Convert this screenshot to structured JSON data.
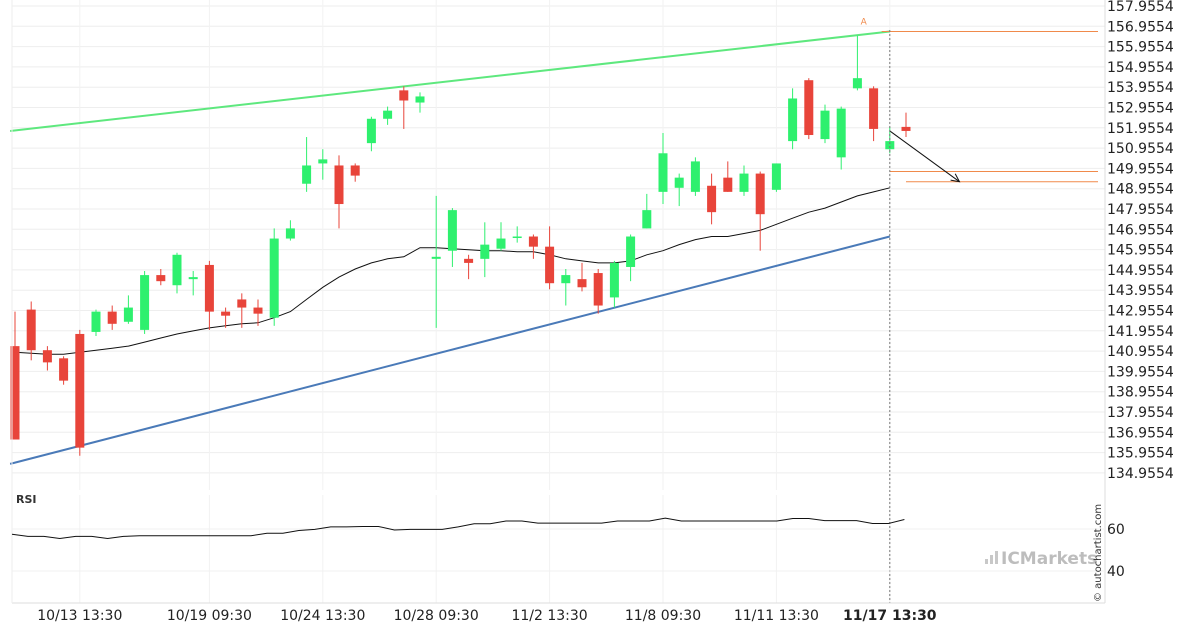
{
  "chart_data": {
    "type": "candlestick",
    "price_axis": {
      "ticks": [
        "157.9554",
        "156.9554",
        "155.9554",
        "154.9554",
        "153.9554",
        "152.9554",
        "151.9554",
        "150.9554",
        "149.9554",
        "148.9554",
        "147.9554",
        "146.9554",
        "145.9554",
        "144.9554",
        "143.9554",
        "142.9554",
        "141.9554",
        "140.9554",
        "139.9554",
        "138.9554",
        "137.9554",
        "136.9554",
        "135.9554",
        "134.9554"
      ],
      "range": [
        134.4554,
        158.2554
      ]
    },
    "time_axis": {
      "labels": [
        {
          "text": "10/13 13:30",
          "index": 4
        },
        {
          "text": "10/19 09:30",
          "index": 12
        },
        {
          "text": "10/24 13:30",
          "index": 19
        },
        {
          "text": "10/28 09:30",
          "index": 26
        },
        {
          "text": "11/2 13:30",
          "index": 33
        },
        {
          "text": "11/8 09:30",
          "index": 40
        },
        {
          "text": "11/11 13:30",
          "index": 47
        },
        {
          "text": "11/17 13:30",
          "index": 54,
          "bold": true
        }
      ]
    },
    "candles": [
      [
        141.2,
        136.6,
        142.9,
        136.6
      ],
      [
        143.0,
        141.0,
        143.4,
        140.5
      ],
      [
        141.0,
        140.4,
        141.2,
        140.0
      ],
      [
        140.6,
        139.5,
        140.7,
        139.3
      ],
      [
        141.8,
        136.2,
        142.0,
        135.8
      ],
      [
        141.9,
        142.9,
        143.0,
        141.7
      ],
      [
        142.9,
        142.3,
        143.2,
        142.0
      ],
      [
        142.4,
        143.1,
        143.7,
        142.3
      ],
      [
        142.0,
        144.7,
        144.9,
        141.8
      ],
      [
        144.7,
        144.4,
        145.0,
        144.2
      ],
      [
        144.2,
        145.7,
        145.8,
        143.8
      ],
      [
        144.5,
        144.6,
        144.9,
        143.7
      ],
      [
        145.2,
        142.9,
        145.4,
        142.0
      ],
      [
        142.9,
        142.7,
        143.1,
        142.1
      ],
      [
        143.5,
        143.1,
        143.8,
        142.1
      ],
      [
        143.1,
        142.8,
        143.5,
        142.2
      ],
      [
        142.6,
        146.5,
        147.0,
        142.2
      ],
      [
        146.5,
        147.0,
        147.4,
        146.4
      ],
      [
        149.2,
        150.1,
        151.5,
        148.8
      ],
      [
        150.2,
        150.4,
        150.9,
        149.4
      ],
      [
        150.1,
        148.2,
        150.6,
        147.0
      ],
      [
        150.1,
        149.6,
        150.2,
        149.3
      ],
      [
        151.2,
        152.4,
        152.5,
        150.8
      ],
      [
        152.4,
        152.8,
        153.0,
        152.1
      ],
      [
        153.8,
        153.3,
        154.0,
        151.9
      ],
      [
        153.2,
        153.5,
        153.7,
        152.7
      ],
      [
        145.5,
        145.6,
        148.6,
        142.1
      ],
      [
        145.9,
        147.9,
        148.0,
        145.1
      ],
      [
        145.5,
        145.3,
        145.7,
        144.5
      ],
      [
        145.5,
        146.2,
        147.3,
        144.6
      ],
      [
        146.0,
        146.5,
        147.3,
        145.9
      ],
      [
        146.6,
        146.6,
        147.1,
        146.3
      ],
      [
        146.6,
        146.1,
        146.7,
        145.5
      ],
      [
        146.1,
        144.3,
        147.1,
        144.0
      ],
      [
        144.3,
        144.7,
        145.0,
        143.2
      ],
      [
        144.5,
        144.1,
        145.3,
        143.9
      ],
      [
        144.8,
        143.2,
        145.0,
        142.8
      ],
      [
        143.6,
        145.3,
        145.4,
        143.1
      ],
      [
        145.1,
        146.6,
        146.7,
        144.4
      ],
      [
        147.0,
        147.9,
        148.7,
        147.0
      ],
      [
        148.8,
        150.7,
        151.7,
        148.2
      ],
      [
        149.0,
        149.5,
        149.7,
        148.1
      ],
      [
        148.8,
        150.3,
        150.5,
        148.6
      ],
      [
        149.1,
        147.8,
        149.7,
        147.2
      ],
      [
        149.5,
        148.8,
        150.3,
        148.8
      ],
      [
        148.8,
        149.7,
        150.1,
        148.6
      ],
      [
        149.7,
        147.7,
        149.8,
        145.9
      ],
      [
        148.9,
        150.2,
        150.2,
        148.8
      ],
      [
        151.3,
        153.4,
        153.9,
        150.9
      ],
      [
        154.3,
        151.6,
        154.4,
        151.4
      ],
      [
        151.4,
        152.8,
        153.1,
        151.2
      ],
      [
        150.5,
        152.9,
        153.0,
        149.9
      ],
      [
        153.9,
        154.4,
        156.5,
        153.8
      ],
      [
        153.9,
        151.9,
        154.0,
        151.3
      ],
      [
        150.9,
        151.3,
        152.0,
        150.7
      ],
      [
        152.0,
        151.8,
        152.7,
        151.5
      ]
    ],
    "moving_average": [
      140.9,
      140.85,
      140.8,
      140.8,
      140.9,
      141.0,
      141.1,
      141.2,
      141.4,
      141.6,
      141.8,
      141.95,
      142.1,
      142.2,
      142.3,
      142.35,
      142.6,
      142.9,
      143.5,
      144.1,
      144.6,
      145.0,
      145.3,
      145.5,
      145.6,
      146.05,
      146.05,
      146.0,
      145.95,
      145.9,
      145.9,
      145.85,
      145.85,
      145.7,
      145.5,
      145.4,
      145.3,
      145.3,
      145.4,
      145.7,
      145.9,
      146.2,
      146.45,
      146.6,
      146.6,
      146.75,
      146.9,
      147.2,
      147.5,
      147.8,
      148.0,
      148.3,
      148.6,
      148.8,
      149.0
    ],
    "upper_channel": {
      "from": [
        -0.3,
        151.8
      ],
      "to": [
        54,
        156.7
      ]
    },
    "lower_channel": {
      "from": [
        -0.3,
        135.4
      ],
      "to": [
        54,
        146.6
      ]
    },
    "forecast_arrow": {
      "from": [
        54,
        151.8
      ],
      "to": [
        58.3,
        149.3
      ]
    },
    "forecast_levels": [
      {
        "value": 149.8,
        "from_index": 54
      },
      {
        "value": 149.3,
        "from_index": 55
      }
    ],
    "resistance_level": {
      "value": 156.7,
      "from_index": 53.5
    },
    "marker": {
      "text": "A",
      "index": 52.2,
      "value": 157.05
    },
    "vertical_line_index": 54,
    "colors": {
      "bull": "#2ef06e",
      "bear": "#e8443a",
      "upper_channel": "#5ee87e",
      "lower_channel": "#4a7ab8",
      "orange": "#f08a4b",
      "ma": "#111111"
    },
    "rsi": {
      "title": "RSI",
      "axis_labels": [
        "60",
        "40"
      ],
      "range": [
        32,
        80
      ],
      "values": [
        57.5,
        56.5,
        56.5,
        55.5,
        56.5,
        56.5,
        55.5,
        56.5,
        56.8,
        56.8,
        56.8,
        56.8,
        56.8,
        56.8,
        56.8,
        56.8,
        58,
        58,
        59.3,
        59.8,
        61,
        61,
        61.2,
        61.2,
        59.5,
        59.8,
        59.8,
        59.8,
        61,
        62.5,
        62.5,
        63.8,
        63.8,
        62.8,
        62.8,
        62.8,
        62.8,
        62.8,
        63.8,
        63.8,
        63.8,
        65.2,
        63.8,
        63.8,
        63.8,
        63.8,
        63.8,
        63.8,
        63.8,
        65,
        65,
        64,
        64,
        64,
        62.6,
        62.6,
        64.5
      ]
    }
  },
  "watermark": "© autochartist.com",
  "brand": {
    "text": "ICMarkets",
    "color": "#bdbdbd"
  }
}
